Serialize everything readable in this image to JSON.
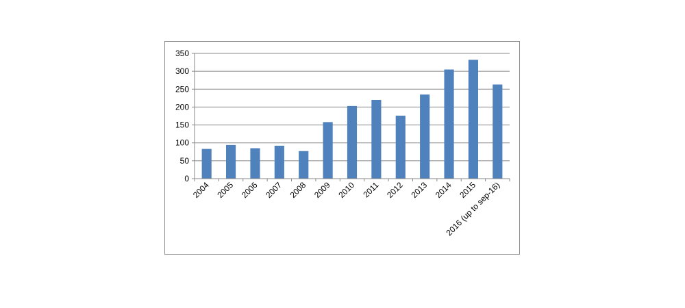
{
  "chart_data": {
    "type": "bar",
    "title": "",
    "xlabel": "",
    "ylabel": "",
    "categories": [
      "2004",
      "2005",
      "2006",
      "2007",
      "2008",
      "2009",
      "2010",
      "2011",
      "2012",
      "2013",
      "2014",
      "2015",
      "2016 (up to sep-16)"
    ],
    "values": [
      83,
      94,
      85,
      92,
      77,
      158,
      203,
      220,
      176,
      235,
      305,
      332,
      263
    ],
    "ylim": [
      0,
      350
    ],
    "yticks": [
      0,
      50,
      100,
      150,
      200,
      250,
      300,
      350
    ],
    "grid": true,
    "legend": "none",
    "colors": {
      "bar": "#4f81bd",
      "grid": "#878787",
      "axis": "#878787"
    }
  }
}
